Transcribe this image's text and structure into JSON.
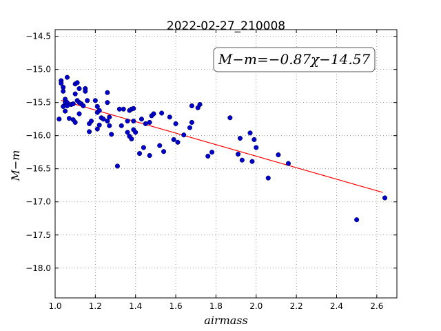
{
  "chart_data": {
    "type": "scatter",
    "title": "2022-02-27_210008",
    "xlabel": "airmass",
    "ylabel": "M−m",
    "xlim": [
      1.0,
      2.7
    ],
    "ylim": [
      -18.45,
      -14.4
    ],
    "y_inverted": true,
    "grid": true,
    "x_ticks": [
      1.0,
      1.2,
      1.4,
      1.6,
      1.8,
      2.0,
      2.2,
      2.4,
      2.6
    ],
    "x_tick_labels": [
      "1.0",
      "1.2",
      "1.4",
      "1.6",
      "1.8",
      "2.0",
      "2.2",
      "2.4",
      "2.6"
    ],
    "y_ticks": [
      -14.5,
      -15.0,
      -15.5,
      -16.0,
      -16.5,
      -17.0,
      -17.5,
      -18.0
    ],
    "y_tick_labels": [
      "−14.5",
      "−15.0",
      "−15.5",
      "−16.0",
      "−16.5",
      "−17.0",
      "−17.5",
      "−18.0"
    ],
    "annotation": "M−m=−0.87χ−14.57",
    "annotation_placement": "top-right",
    "fit_line": {
      "slope": -0.87,
      "intercept": -14.57,
      "x_range": [
        1.03,
        2.63
      ],
      "color": "#ff0000"
    },
    "point_color": "#0000cc",
    "points": [
      [
        1.02,
        -15.75
      ],
      [
        1.03,
        -15.17
      ],
      [
        1.03,
        -15.21
      ],
      [
        1.04,
        -15.27
      ],
      [
        1.04,
        -15.33
      ],
      [
        1.05,
        -15.45
      ],
      [
        1.05,
        -15.5
      ],
      [
        1.04,
        -15.56
      ],
      [
        1.05,
        -15.63
      ],
      [
        1.06,
        -15.12
      ],
      [
        1.06,
        -15.5
      ],
      [
        1.06,
        -15.55
      ],
      [
        1.07,
        -15.74
      ],
      [
        1.08,
        -15.53
      ],
      [
        1.09,
        -15.52
      ],
      [
        1.09,
        -15.76
      ],
      [
        1.1,
        -15.37
      ],
      [
        1.1,
        -15.22
      ],
      [
        1.1,
        -15.8
      ],
      [
        1.11,
        -15.47
      ],
      [
        1.11,
        -15.2
      ],
      [
        1.12,
        -15.29
      ],
      [
        1.12,
        -15.5
      ],
      [
        1.12,
        -15.67
      ],
      [
        1.13,
        -15.52
      ],
      [
        1.14,
        -15.55
      ],
      [
        1.15,
        -15.29
      ],
      [
        1.15,
        -15.33
      ],
      [
        1.16,
        -15.47
      ],
      [
        1.17,
        -15.94
      ],
      [
        1.17,
        -15.82
      ],
      [
        1.18,
        -15.78
      ],
      [
        1.2,
        -15.47
      ],
      [
        1.21,
        -15.9
      ],
      [
        1.21,
        -15.65
      ],
      [
        1.21,
        -15.56
      ],
      [
        1.22,
        -15.62
      ],
      [
        1.22,
        -15.84
      ],
      [
        1.23,
        -15.73
      ],
      [
        1.24,
        -15.75
      ],
      [
        1.26,
        -15.5
      ],
      [
        1.26,
        -15.35
      ],
      [
        1.26,
        -15.78
      ],
      [
        1.27,
        -15.72
      ],
      [
        1.27,
        -15.85
      ],
      [
        1.28,
        -15.98
      ],
      [
        1.31,
        -16.46
      ],
      [
        1.32,
        -15.6
      ],
      [
        1.33,
        -15.85
      ],
      [
        1.34,
        -15.6
      ],
      [
        1.36,
        -15.95
      ],
      [
        1.36,
        -15.78
      ],
      [
        1.37,
        -15.62
      ],
      [
        1.37,
        -16.01
      ],
      [
        1.38,
        -15.6
      ],
      [
        1.38,
        -16.05
      ],
      [
        1.39,
        -15.59
      ],
      [
        1.39,
        -15.78
      ],
      [
        1.39,
        -15.91
      ],
      [
        1.4,
        -15.95
      ],
      [
        1.42,
        -16.27
      ],
      [
        1.43,
        -15.75
      ],
      [
        1.44,
        -16.18
      ],
      [
        1.45,
        -15.82
      ],
      [
        1.47,
        -16.3
      ],
      [
        1.47,
        -15.8
      ],
      [
        1.48,
        -15.7
      ],
      [
        1.49,
        -15.67
      ],
      [
        1.52,
        -16.15
      ],
      [
        1.53,
        -15.66
      ],
      [
        1.54,
        -16.24
      ],
      [
        1.57,
        -15.72
      ],
      [
        1.59,
        -16.06
      ],
      [
        1.6,
        -15.82
      ],
      [
        1.61,
        -16.1
      ],
      [
        1.64,
        -15.99
      ],
      [
        1.67,
        -15.88
      ],
      [
        1.68,
        -15.55
      ],
      [
        1.68,
        -15.8
      ],
      [
        1.71,
        -15.58
      ],
      [
        1.72,
        -15.53
      ],
      [
        1.76,
        -16.31
      ],
      [
        1.78,
        -16.25
      ],
      [
        1.87,
        -15.73
      ],
      [
        1.91,
        -16.28
      ],
      [
        1.92,
        -16.04
      ],
      [
        1.93,
        -16.37
      ],
      [
        1.97,
        -15.96
      ],
      [
        1.98,
        -16.39
      ],
      [
        1.99,
        -16.06
      ],
      [
        2.0,
        -16.18
      ],
      [
        2.06,
        -16.64
      ],
      [
        2.11,
        -16.29
      ],
      [
        2.16,
        -16.42
      ],
      [
        2.5,
        -17.27
      ],
      [
        2.64,
        -16.94
      ]
    ]
  }
}
